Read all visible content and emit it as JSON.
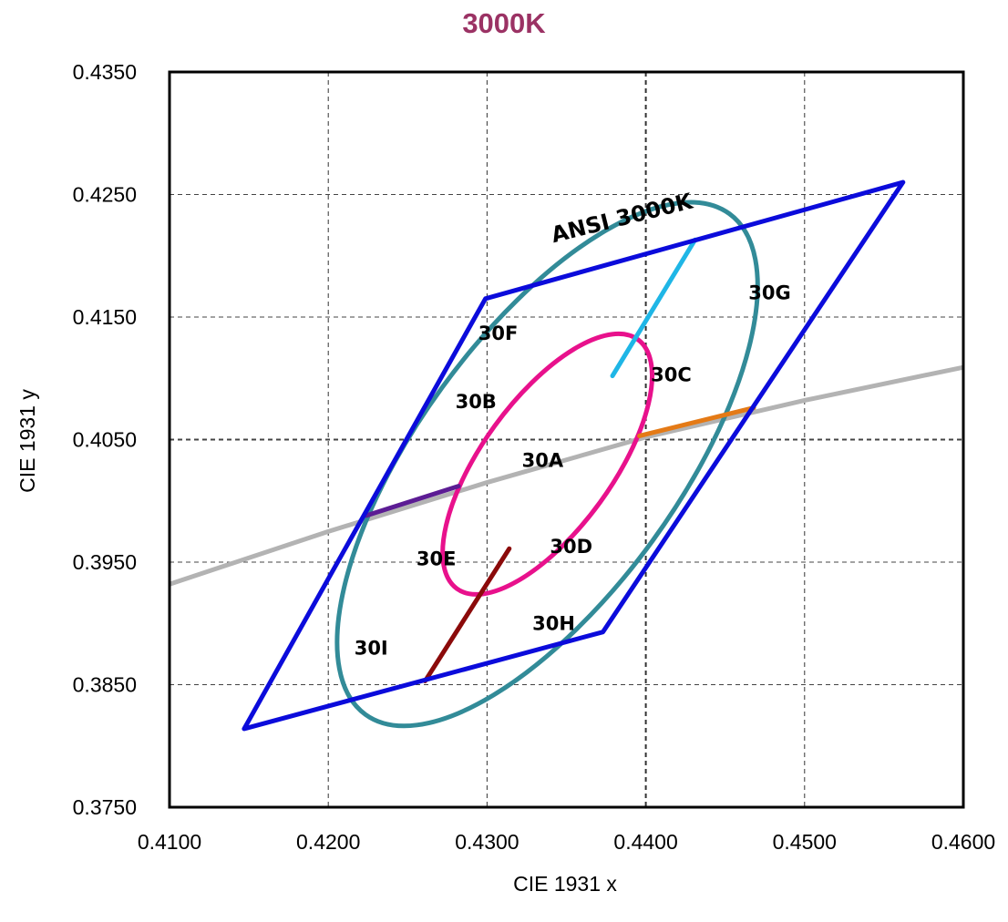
{
  "chart_data": {
    "type": "line",
    "title": "3000K",
    "title_color": "#9b3264",
    "xlabel": "CIE 1931 x",
    "ylabel": "CIE 1931 y",
    "xlim": [
      0.41,
      0.46
    ],
    "ylim": [
      0.375,
      0.435
    ],
    "xticks": [
      0.41,
      0.42,
      0.43,
      0.44,
      0.45,
      0.46
    ],
    "yticks": [
      0.375,
      0.385,
      0.395,
      0.405,
      0.415,
      0.425,
      0.435
    ],
    "xtick_labels": [
      "0.4100",
      "0.4200",
      "0.4300",
      "0.4400",
      "0.4500",
      "0.4600"
    ],
    "ytick_labels": [
      "0.3750",
      "0.3850",
      "0.3950",
      "0.4050",
      "0.4150",
      "0.4250",
      "0.4350"
    ],
    "grid": true,
    "colors": {
      "ansi_quad": "#0b0bdb",
      "outer_ellipse": "#328b98",
      "inner_ellipse": "#e8118c",
      "planckian": "#b3b3b3",
      "div_30g": "#1fb6e6",
      "div_30i": "#8b0a0a",
      "div_right": "#e47a16",
      "div_left": "#5c1c94"
    },
    "series": [
      {
        "type": "polygon",
        "role": "ANSI quadrangle",
        "x": [
          0.4147,
          0.4299,
          0.4562,
          0.4373
        ],
        "y": [
          0.3814,
          0.4165,
          0.426,
          0.3893
        ]
      },
      {
        "type": "ellipse",
        "role": "outer ellipse",
        "cx": 0.4338,
        "cy": 0.403,
        "rx": 0.0195,
        "ry": 0.0082,
        "tilt_deg": 54
      },
      {
        "type": "ellipse",
        "role": "inner ellipse",
        "cx": 0.4338,
        "cy": 0.403,
        "rx": 0.0097,
        "ry": 0.0041,
        "tilt_deg": 54
      },
      {
        "type": "line",
        "role": "blackbody locus",
        "x": [
          0.41,
          0.42,
          0.43,
          0.44,
          0.45,
          0.46
        ],
        "y": [
          0.3932,
          0.3975,
          0.4015,
          0.4052,
          0.4082,
          0.4109
        ]
      },
      {
        "type": "line",
        "role": "divider",
        "x": [
          0.4379,
          0.4431
        ],
        "y": [
          0.4102,
          0.4213
        ]
      },
      {
        "type": "line",
        "role": "divider",
        "x": [
          0.4314,
          0.4261
        ],
        "y": [
          0.3961,
          0.3853
        ]
      },
      {
        "type": "line",
        "role": "divider",
        "x": [
          0.4396,
          0.4468
        ],
        "y": [
          0.4053,
          0.4076
        ]
      },
      {
        "type": "line",
        "role": "divider",
        "x": [
          0.4224,
          0.4282
        ],
        "y": [
          0.3988,
          0.4012
        ]
      }
    ],
    "annotations": [
      {
        "text": "ANSI 3000K",
        "x": 0.4385,
        "y": 0.423,
        "rotate": -14
      },
      {
        "text": "30G",
        "x": 0.4478,
        "y": 0.4169
      },
      {
        "text": "30F",
        "x": 0.4307,
        "y": 0.4136
      },
      {
        "text": "30C",
        "x": 0.4416,
        "y": 0.4102
      },
      {
        "text": "30B",
        "x": 0.4293,
        "y": 0.408
      },
      {
        "text": "30A",
        "x": 0.4335,
        "y": 0.4032
      },
      {
        "text": "30E",
        "x": 0.4268,
        "y": 0.3952
      },
      {
        "text": "30D",
        "x": 0.4353,
        "y": 0.3962
      },
      {
        "text": "30H",
        "x": 0.4342,
        "y": 0.3899
      },
      {
        "text": "30I",
        "x": 0.4227,
        "y": 0.3879
      }
    ]
  }
}
